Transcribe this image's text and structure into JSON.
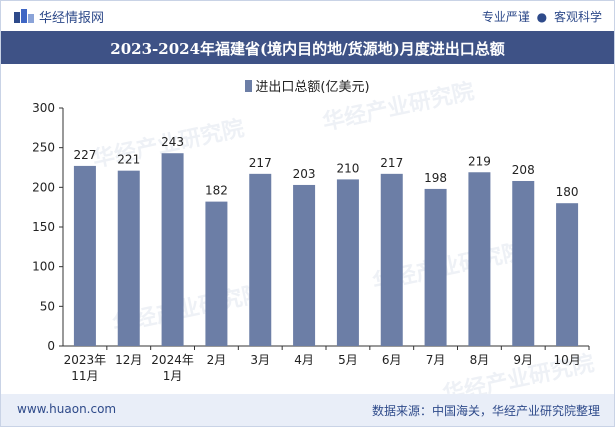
{
  "header": {
    "brand": "华经情报网",
    "slogan_left": "专业严谨",
    "slogan_sep": "●",
    "slogan_right": "客观科学"
  },
  "chart_data": {
    "type": "bar",
    "title": "2023-2024年福建省(境内目的地/货源地)月度进出口总额",
    "legend": [
      "进出口总额(亿美元)"
    ],
    "categories": [
      [
        "2023年",
        "11月"
      ],
      [
        "12月"
      ],
      [
        "2024年",
        "1月"
      ],
      [
        "2月"
      ],
      [
        "3月"
      ],
      [
        "4月"
      ],
      [
        "5月"
      ],
      [
        "6月"
      ],
      [
        "7月"
      ],
      [
        "8月"
      ],
      [
        "9月"
      ],
      [
        "10月"
      ]
    ],
    "values": [
      227,
      221,
      243,
      182,
      217,
      203,
      210,
      217,
      198,
      219,
      208,
      180
    ],
    "ylim": [
      0,
      300
    ],
    "yticks": [
      0,
      50,
      100,
      150,
      200,
      250,
      300
    ],
    "bar_color": "#6c7ea6",
    "xlabel": "",
    "ylabel": ""
  },
  "watermarks": [
    "华经产业研究院",
    "www.huaon.com"
  ],
  "footer": {
    "website": "www.huaon.com",
    "source": "数据来源：中国海关，华经产业研究院整理"
  }
}
